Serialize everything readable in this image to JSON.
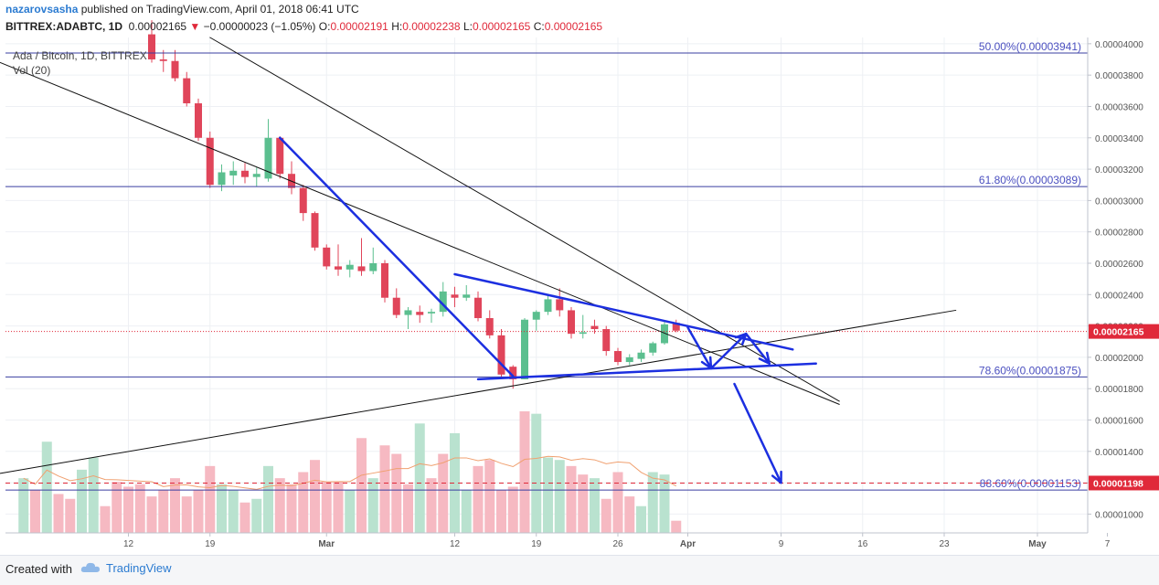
{
  "header": {
    "user": "nazarovsasha",
    "published": "published on TradingView.com, April 01, 2018 06:41 UTC",
    "symbol": "BITTREX:ADABTC, 1D",
    "last": "0.00002165",
    "change": "−0.00000023 (−1.05%)",
    "o_label": "O:",
    "o": "0.00002191",
    "h_label": "H:",
    "h": "0.00002238",
    "l_label": "L:",
    "l": "0.00002165",
    "c_label": "C:",
    "c": "0.00002165"
  },
  "legend": {
    "title": "Ada / Bitcoin, 1D, BITTREX",
    "vol": "Vol (20)"
  },
  "footer": {
    "created": "Created with",
    "brand": "TradingView"
  },
  "colors": {
    "up": "#5bbf8f",
    "down": "#e0455a",
    "up_vol": "#b9e2cf",
    "down_vol": "#f6b9c2",
    "fib_line": "#3a3fa0",
    "fib_text": "#4b50c0",
    "drawing": "#1c2fe0",
    "trend": "#111111",
    "last_price_bg": "#e0293a",
    "ma": "#f0a070"
  },
  "chart_data": {
    "type": "candlestick",
    "title": "Ada / Bitcoin, 1D, BITTREX",
    "y_range": [
      8.8e-06,
      4.2e-06
    ],
    "y_ticks": [
      "0.00004000",
      "0.00003800",
      "0.00003600",
      "0.00003400",
      "0.00003200",
      "0.00003000",
      "0.00002800",
      "0.00002600",
      "0.00002400",
      "0.00002200",
      "0.00002000",
      "0.00001800",
      "0.00001600",
      "0.00001400",
      "0.00001200",
      "0.00001000"
    ],
    "x_ticks": [
      {
        "label": "12",
        "date": "2018-02-12"
      },
      {
        "label": "19",
        "date": "2018-02-19"
      },
      {
        "label": "Mar",
        "date": "2018-03-01"
      },
      {
        "label": "12",
        "date": "2018-03-12"
      },
      {
        "label": "19",
        "date": "2018-03-19"
      },
      {
        "label": "26",
        "date": "2018-03-26"
      },
      {
        "label": "Apr",
        "date": "2018-04-01"
      },
      {
        "label": "9",
        "date": "2018-04-09"
      },
      {
        "label": "16",
        "date": "2018-04-16"
      },
      {
        "label": "23",
        "date": "2018-04-23"
      },
      {
        "label": "May",
        "date": "2018-05-01"
      },
      {
        "label": "7",
        "date": "2018-05-07"
      }
    ],
    "fib_levels": [
      {
        "label": "50.00%(0.00003941)",
        "value": 3.941e-05
      },
      {
        "label": "61.80%(0.00003089)",
        "value": 3.089e-05
      },
      {
        "label": "78.60%(0.00001875)",
        "value": 1.875e-05
      },
      {
        "label": "88.60%(0.00001153)",
        "value": 1.153e-05
      }
    ],
    "last_price": {
      "label": "0.00002165",
      "value": 2.165e-05
    },
    "target_price": {
      "label": "0.00001198",
      "value": 1.198e-05
    },
    "candles": [
      {
        "date": "2018-02-14",
        "o": 4.06e-05,
        "h": 4.15e-05,
        "l": 3.88e-05,
        "c": 3.9e-05
      },
      {
        "date": "2018-02-15",
        "o": 3.9e-05,
        "h": 3.96e-05,
        "l": 3.82e-05,
        "c": 3.89e-05
      },
      {
        "date": "2018-02-16",
        "o": 3.89e-05,
        "h": 3.96e-05,
        "l": 3.76e-05,
        "c": 3.78e-05
      },
      {
        "date": "2018-02-17",
        "o": 3.78e-05,
        "h": 3.82e-05,
        "l": 3.6e-05,
        "c": 3.62e-05
      },
      {
        "date": "2018-02-18",
        "o": 3.62e-05,
        "h": 3.65e-05,
        "l": 3.38e-05,
        "c": 3.4e-05
      },
      {
        "date": "2018-02-19",
        "o": 3.4e-05,
        "h": 3.44e-05,
        "l": 3.08e-05,
        "c": 3.1e-05
      },
      {
        "date": "2018-02-20",
        "o": 3.1e-05,
        "h": 3.23e-05,
        "l": 3.06e-05,
        "c": 3.18e-05
      },
      {
        "date": "2018-02-21",
        "o": 3.16e-05,
        "h": 3.25e-05,
        "l": 3.1e-05,
        "c": 3.19e-05
      },
      {
        "date": "2018-02-22",
        "o": 3.19e-05,
        "h": 3.24e-05,
        "l": 3.11e-05,
        "c": 3.15e-05
      },
      {
        "date": "2018-02-23",
        "o": 3.15e-05,
        "h": 3.21e-05,
        "l": 3.09e-05,
        "c": 3.17e-05
      },
      {
        "date": "2018-02-24",
        "o": 3.14e-05,
        "h": 3.52e-05,
        "l": 3.12e-05,
        "c": 3.4e-05
      },
      {
        "date": "2018-02-25",
        "o": 3.4e-05,
        "h": 3.41e-05,
        "l": 3.14e-05,
        "c": 3.17e-05
      },
      {
        "date": "2018-02-26",
        "o": 3.17e-05,
        "h": 3.25e-05,
        "l": 3.04e-05,
        "c": 3.08e-05
      },
      {
        "date": "2018-02-27",
        "o": 3.08e-05,
        "h": 3.1e-05,
        "l": 2.87e-05,
        "c": 2.92e-05
      },
      {
        "date": "2018-02-28",
        "o": 2.92e-05,
        "h": 2.93e-05,
        "l": 2.68e-05,
        "c": 2.7e-05
      },
      {
        "date": "2018-03-01",
        "o": 2.7e-05,
        "h": 2.72e-05,
        "l": 2.56e-05,
        "c": 2.58e-05
      },
      {
        "date": "2018-03-02",
        "o": 2.58e-05,
        "h": 2.72e-05,
        "l": 2.52e-05,
        "c": 2.56e-05
      },
      {
        "date": "2018-03-03",
        "o": 2.56e-05,
        "h": 2.62e-05,
        "l": 2.51e-05,
        "c": 2.59e-05
      },
      {
        "date": "2018-03-04",
        "o": 2.58e-05,
        "h": 2.76e-05,
        "l": 2.52e-05,
        "c": 2.55e-05
      },
      {
        "date": "2018-03-05",
        "o": 2.55e-05,
        "h": 2.7e-05,
        "l": 2.53e-05,
        "c": 2.6e-05
      },
      {
        "date": "2018-03-06",
        "o": 2.6e-05,
        "h": 2.62e-05,
        "l": 2.35e-05,
        "c": 2.38e-05
      },
      {
        "date": "2018-03-07",
        "o": 2.38e-05,
        "h": 2.44e-05,
        "l": 2.25e-05,
        "c": 2.27e-05
      },
      {
        "date": "2018-03-08",
        "o": 2.27e-05,
        "h": 2.32e-05,
        "l": 2.18e-05,
        "c": 2.3e-05
      },
      {
        "date": "2018-03-09",
        "o": 2.29e-05,
        "h": 2.33e-05,
        "l": 2.22e-05,
        "c": 2.27e-05
      },
      {
        "date": "2018-03-10",
        "o": 2.28e-05,
        "h": 2.31e-05,
        "l": 2.22e-05,
        "c": 2.29e-05
      },
      {
        "date": "2018-03-11",
        "o": 2.29e-05,
        "h": 2.48e-05,
        "l": 2.26e-05,
        "c": 2.42e-05
      },
      {
        "date": "2018-03-12",
        "o": 2.4e-05,
        "h": 2.45e-05,
        "l": 2.32e-05,
        "c": 2.38e-05
      },
      {
        "date": "2018-03-13",
        "o": 2.38e-05,
        "h": 2.46e-05,
        "l": 2.36e-05,
        "c": 2.4e-05
      },
      {
        "date": "2018-03-14",
        "o": 2.38e-05,
        "h": 2.42e-05,
        "l": 2.23e-05,
        "c": 2.25e-05
      },
      {
        "date": "2018-03-15",
        "o": 2.25e-05,
        "h": 2.3e-05,
        "l": 2.12e-05,
        "c": 2.14e-05
      },
      {
        "date": "2018-03-16",
        "o": 2.14e-05,
        "h": 2.18e-05,
        "l": 1.87e-05,
        "c": 1.89e-05
      },
      {
        "date": "2018-03-17",
        "o": 1.94e-05,
        "h": 1.95e-05,
        "l": 1.8e-05,
        "c": 1.86e-05
      },
      {
        "date": "2018-03-18",
        "o": 1.86e-05,
        "h": 2.25e-05,
        "l": 1.86e-05,
        "c": 2.24e-05
      },
      {
        "date": "2018-03-19",
        "o": 2.24e-05,
        "h": 2.3e-05,
        "l": 2.17e-05,
        "c": 2.29e-05
      },
      {
        "date": "2018-03-20",
        "o": 2.29e-05,
        "h": 2.4e-05,
        "l": 2.27e-05,
        "c": 2.37e-05
      },
      {
        "date": "2018-03-21",
        "o": 2.37e-05,
        "h": 2.44e-05,
        "l": 2.26e-05,
        "c": 2.3e-05
      },
      {
        "date": "2018-03-22",
        "o": 2.3e-05,
        "h": 2.32e-05,
        "l": 2.12e-05,
        "c": 2.15e-05
      },
      {
        "date": "2018-03-23",
        "o": 2.15e-05,
        "h": 2.27e-05,
        "l": 2.12e-05,
        "c": 2.16e-05
      },
      {
        "date": "2018-03-24",
        "o": 2.2e-05,
        "h": 2.24e-05,
        "l": 2.15e-05,
        "c": 2.18e-05
      },
      {
        "date": "2018-03-25",
        "o": 2.18e-05,
        "h": 2.2e-05,
        "l": 2.01e-05,
        "c": 2.04e-05
      },
      {
        "date": "2018-03-26",
        "o": 2.04e-05,
        "h": 2.06e-05,
        "l": 1.95e-05,
        "c": 1.97e-05
      },
      {
        "date": "2018-03-27",
        "o": 1.97e-05,
        "h": 2.02e-05,
        "l": 1.95e-05,
        "c": 2e-05
      },
      {
        "date": "2018-03-28",
        "o": 1.99e-05,
        "h": 2.05e-05,
        "l": 1.97e-05,
        "c": 2.03e-05
      },
      {
        "date": "2018-03-29",
        "o": 2.03e-05,
        "h": 2.1e-05,
        "l": 2.01e-05,
        "c": 2.09e-05
      },
      {
        "date": "2018-03-30",
        "o": 2.09e-05,
        "h": 2.23e-05,
        "l": 2.08e-05,
        "c": 2.21e-05
      },
      {
        "date": "2018-03-31",
        "o": 2.22e-05,
        "h": 2.24e-05,
        "l": 2.16e-05,
        "c": 2.17e-05
      }
    ],
    "volume_scale": "relative (0-1)",
    "volumes": [
      {
        "date": "2018-02-03",
        "v": 0.45,
        "up": true
      },
      {
        "date": "2018-02-04",
        "v": 0.35,
        "up": false
      },
      {
        "date": "2018-02-05",
        "v": 0.75,
        "up": true
      },
      {
        "date": "2018-02-06",
        "v": 0.32,
        "up": false
      },
      {
        "date": "2018-02-07",
        "v": 0.28,
        "up": false
      },
      {
        "date": "2018-02-08",
        "v": 0.52,
        "up": true
      },
      {
        "date": "2018-02-09",
        "v": 0.62,
        "up": true
      },
      {
        "date": "2018-02-10",
        "v": 0.22,
        "up": false
      },
      {
        "date": "2018-02-11",
        "v": 0.42,
        "up": false
      },
      {
        "date": "2018-02-12",
        "v": 0.38,
        "up": false
      },
      {
        "date": "2018-02-13",
        "v": 0.4,
        "up": false
      },
      {
        "date": "2018-02-14",
        "v": 0.3,
        "up": false
      },
      {
        "date": "2018-02-15",
        "v": 0.35,
        "up": false
      },
      {
        "date": "2018-02-16",
        "v": 0.45,
        "up": false
      },
      {
        "date": "2018-02-17",
        "v": 0.3,
        "up": false
      },
      {
        "date": "2018-02-18",
        "v": 0.35,
        "up": false
      },
      {
        "date": "2018-02-19",
        "v": 0.55,
        "up": false
      },
      {
        "date": "2018-02-20",
        "v": 0.4,
        "up": true
      },
      {
        "date": "2018-02-21",
        "v": 0.35,
        "up": true
      },
      {
        "date": "2018-02-22",
        "v": 0.25,
        "up": false
      },
      {
        "date": "2018-02-23",
        "v": 0.28,
        "up": true
      },
      {
        "date": "2018-02-24",
        "v": 0.55,
        "up": true
      },
      {
        "date": "2018-02-25",
        "v": 0.45,
        "up": false
      },
      {
        "date": "2018-02-26",
        "v": 0.4,
        "up": false
      },
      {
        "date": "2018-02-27",
        "v": 0.5,
        "up": false
      },
      {
        "date": "2018-02-28",
        "v": 0.6,
        "up": false
      },
      {
        "date": "2018-03-01",
        "v": 0.42,
        "up": false
      },
      {
        "date": "2018-03-02",
        "v": 0.42,
        "up": false
      },
      {
        "date": "2018-03-03",
        "v": 0.35,
        "up": true
      },
      {
        "date": "2018-03-04",
        "v": 0.78,
        "up": false
      },
      {
        "date": "2018-03-05",
        "v": 0.45,
        "up": true
      },
      {
        "date": "2018-03-06",
        "v": 0.72,
        "up": false
      },
      {
        "date": "2018-03-07",
        "v": 0.65,
        "up": false
      },
      {
        "date": "2018-03-08",
        "v": 0.4,
        "up": false
      },
      {
        "date": "2018-03-09",
        "v": 0.9,
        "up": true
      },
      {
        "date": "2018-03-10",
        "v": 0.45,
        "up": false
      },
      {
        "date": "2018-03-11",
        "v": 0.65,
        "up": false
      },
      {
        "date": "2018-03-12",
        "v": 0.82,
        "up": true
      },
      {
        "date": "2018-03-13",
        "v": 0.35,
        "up": true
      },
      {
        "date": "2018-03-14",
        "v": 0.55,
        "up": false
      },
      {
        "date": "2018-03-15",
        "v": 0.6,
        "up": false
      },
      {
        "date": "2018-03-16",
        "v": 0.35,
        "up": false
      },
      {
        "date": "2018-03-17",
        "v": 0.38,
        "up": false
      },
      {
        "date": "2018-03-18",
        "v": 1.0,
        "up": false
      },
      {
        "date": "2018-03-19",
        "v": 0.98,
        "up": true
      },
      {
        "date": "2018-03-20",
        "v": 0.62,
        "up": true
      },
      {
        "date": "2018-03-21",
        "v": 0.6,
        "up": true
      },
      {
        "date": "2018-03-22",
        "v": 0.55,
        "up": false
      },
      {
        "date": "2018-03-23",
        "v": 0.48,
        "up": false
      },
      {
        "date": "2018-03-24",
        "v": 0.45,
        "up": true
      },
      {
        "date": "2018-03-25",
        "v": 0.28,
        "up": false
      },
      {
        "date": "2018-03-26",
        "v": 0.5,
        "up": false
      },
      {
        "date": "2018-03-27",
        "v": 0.3,
        "up": false
      },
      {
        "date": "2018-03-28",
        "v": 0.22,
        "up": true
      },
      {
        "date": "2018-03-29",
        "v": 0.5,
        "up": true
      },
      {
        "date": "2018-03-30",
        "v": 0.48,
        "up": true
      },
      {
        "date": "2018-03-31",
        "v": 0.1,
        "up": false
      }
    ]
  }
}
